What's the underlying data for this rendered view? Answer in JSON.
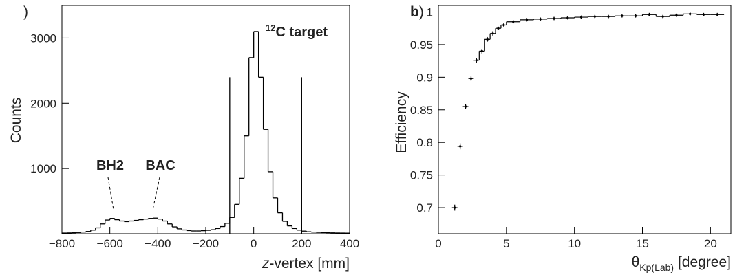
{
  "chart_data": [
    {
      "type": "histogram",
      "panel": ")",
      "ylabel": "Counts",
      "xlabel_italic": "z",
      "xlabel": "-vertex [mm]",
      "bins": [
        -800,
        -780,
        -760,
        -740,
        -720,
        -700,
        -680,
        -660,
        -640,
        -620,
        -600,
        -580,
        -560,
        -540,
        -520,
        -500,
        -480,
        -460,
        -440,
        -420,
        -400,
        -380,
        -360,
        -340,
        -320,
        -300,
        -280,
        -260,
        -240,
        -220,
        -200,
        -180,
        -160,
        -140,
        -120,
        -100,
        -80,
        -60,
        -40,
        -20,
        0,
        20,
        40,
        60,
        80,
        100,
        120,
        140,
        160,
        180,
        200,
        220,
        240,
        260,
        280,
        300,
        320,
        340,
        360,
        380,
        400
      ],
      "values": [
        10,
        12,
        14,
        18,
        25,
        35,
        55,
        90,
        150,
        210,
        235,
        215,
        195,
        185,
        195,
        205,
        215,
        225,
        235,
        240,
        225,
        195,
        150,
        105,
        75,
        58,
        48,
        42,
        42,
        46,
        52,
        62,
        80,
        110,
        160,
        250,
        450,
        850,
        1500,
        2700,
        3100,
        2400,
        1600,
        950,
        550,
        320,
        190,
        120,
        80,
        55,
        40,
        30,
        24,
        20,
        17,
        15,
        13,
        11,
        10,
        9
      ],
      "color": "#000000",
      "xlim": [
        -800,
        400
      ],
      "ylim": [
        0,
        3500
      ],
      "xticks": [
        {
          "value": -800,
          "label": "−800"
        },
        {
          "value": -600,
          "label": "−600"
        },
        {
          "value": -400,
          "label": "−400"
        },
        {
          "value": -200,
          "label": "−200"
        },
        0,
        200,
        400
      ],
      "yticks": [
        1000,
        2000,
        3000
      ],
      "vlines": [
        {
          "x": -100,
          "ymax": 2400
        },
        {
          "x": 200,
          "ymax": 2400
        }
      ],
      "annotations": [
        {
          "text": "BH2"
        },
        {
          "text": "BAC"
        },
        {
          "superscript": "12",
          "text": "C target"
        }
      ]
    },
    {
      "type": "errorbar",
      "panel": "b)",
      "ylabel": "Efficiency",
      "xlabel_symbol": "θ",
      "xlabel_subscript": "Kp(Lab)",
      "xlabel_unit": "[degree]",
      "x": [
        1.2,
        1.6,
        2.0,
        2.4,
        2.8,
        3.2,
        3.6,
        4.0,
        4.4,
        4.8,
        5.5,
        6.5,
        7.5,
        8.5,
        9.5,
        10.5,
        11.5,
        12.5,
        13.5,
        14.5,
        15.5,
        16.5,
        17.5,
        18.5,
        19.5,
        20.5
      ],
      "xerr": [
        0.2,
        0.2,
        0.2,
        0.2,
        0.2,
        0.2,
        0.2,
        0.2,
        0.2,
        0.2,
        0.5,
        0.5,
        0.5,
        0.5,
        0.5,
        0.5,
        0.5,
        0.5,
        0.5,
        0.5,
        0.5,
        0.5,
        0.5,
        0.5,
        0.5,
        0.5
      ],
      "values": [
        0.7,
        0.794,
        0.855,
        0.898,
        0.926,
        0.94,
        0.958,
        0.967,
        0.975,
        0.98,
        0.985,
        0.988,
        0.989,
        0.99,
        0.991,
        0.992,
        0.993,
        0.993,
        0.994,
        0.994,
        0.996,
        0.993,
        0.995,
        0.997,
        0.996,
        0.996
      ],
      "yerr": [
        0.003,
        0.003,
        0.002,
        0.002,
        0.002,
        0.002,
        0.002,
        0.002,
        0.001,
        0.001,
        0.001,
        0.001,
        0.001,
        0.001,
        0.001,
        0.001,
        0.001,
        0.001,
        0.001,
        0.001,
        0.001,
        0.001,
        0.001,
        0.001,
        0.001,
        0.001
      ],
      "color": "#000000",
      "xlim": [
        0,
        21.5
      ],
      "ylim": [
        0.66,
        1.01
      ],
      "xticks": [
        0,
        5,
        10,
        15,
        20
      ],
      "yticks": [
        0.7,
        0.75,
        0.8,
        0.85,
        0.9,
        0.95,
        1
      ]
    }
  ]
}
